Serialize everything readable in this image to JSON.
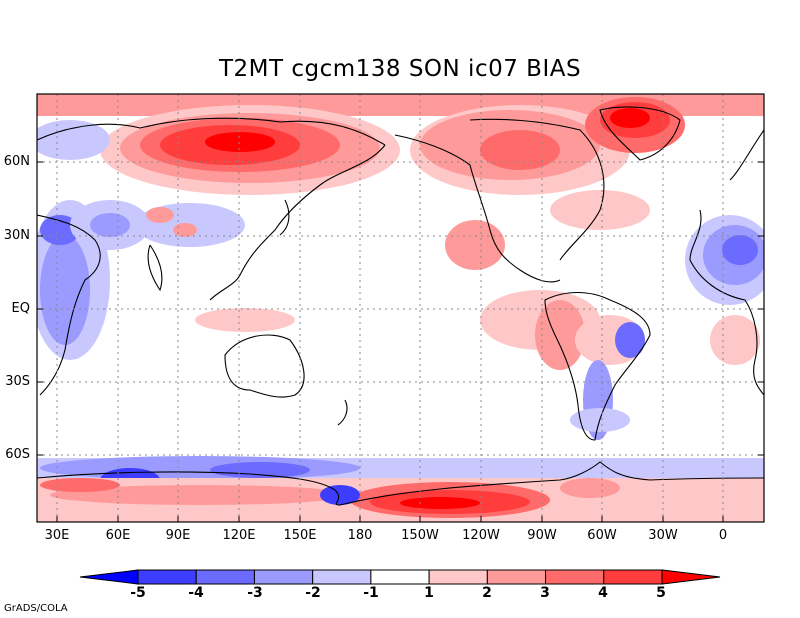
{
  "title": "T2MT cgcm138 SON ic07 BIAS",
  "credit": "GrADS/COLA",
  "lat_labels": [
    "60N",
    "30N",
    "EQ",
    "30S",
    "60S"
  ],
  "lon_labels": [
    "30E",
    "60E",
    "90E",
    "120E",
    "150E",
    "180",
    "150W",
    "120W",
    "90W",
    "60W",
    "30W",
    "0"
  ],
  "colorbar": {
    "labels": [
      "-5",
      "-4",
      "-3",
      "-2",
      "-1",
      "1",
      "2",
      "3",
      "4",
      "5"
    ],
    "colors": [
      "#0000ff",
      "#3d3dff",
      "#6b6bff",
      "#9a9aff",
      "#c8c8ff",
      "#ffffff",
      "#ffc8c8",
      "#ff9a9a",
      "#ff6b6b",
      "#ff3d3d",
      "#ff0000"
    ]
  }
}
